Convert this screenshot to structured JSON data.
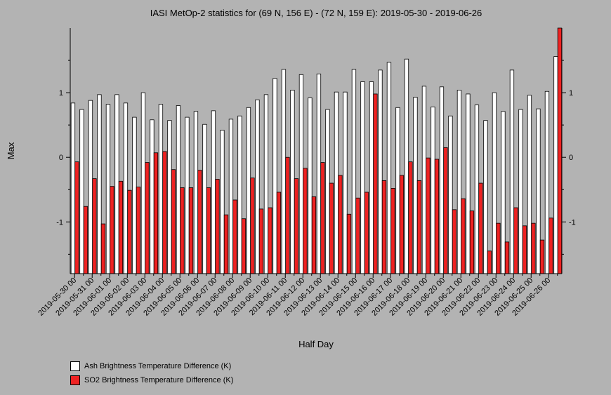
{
  "chart_data": {
    "type": "bar",
    "title": "IASI MetOp-2 statistics for (69 N, 156 E) - (72 N, 159 E): 2019-05-30 - 2019-06-26",
    "xlabel": "Half Day",
    "ylabel": "Max",
    "ylim": [
      -1.8,
      2.0
    ],
    "yticks": [
      -1,
      0,
      1
    ],
    "grid": false,
    "legend_position": "bottom-left",
    "categories": [
      "2019-05-30 00",
      "2019-05-30 12",
      "2019-05-31 00",
      "2019-05-31 12",
      "2019-06-01 00",
      "2019-06-01 12",
      "2019-06-02 00",
      "2019-06-02 12",
      "2019-06-03 00",
      "2019-06-03 12",
      "2019-06-04 00",
      "2019-06-04 12",
      "2019-06-05 00",
      "2019-06-05 12",
      "2019-06-06 00",
      "2019-06-06 12",
      "2019-06-07 00",
      "2019-06-07 12",
      "2019-06-08 00",
      "2019-06-08 12",
      "2019-06-09 00",
      "2019-06-09 12",
      "2019-06-10 00",
      "2019-06-10 12",
      "2019-06-11 00",
      "2019-06-11 12",
      "2019-06-12 00",
      "2019-06-12 12",
      "2019-06-13 00",
      "2019-06-13 12",
      "2019-06-14 00",
      "2019-06-14 12",
      "2019-06-15 00",
      "2019-06-15 12",
      "2019-06-16 00",
      "2019-06-16 12",
      "2019-06-17 00",
      "2019-06-17 12",
      "2019-06-18 00",
      "2019-06-18 12",
      "2019-06-19 00",
      "2019-06-19 12",
      "2019-06-20 00",
      "2019-06-20 12",
      "2019-06-21 00",
      "2019-06-21 12",
      "2019-06-22 00",
      "2019-06-22 12",
      "2019-06-23 00",
      "2019-06-23 12",
      "2019-06-24 00",
      "2019-06-24 12",
      "2019-06-25 00",
      "2019-06-25 12",
      "2019-06-26 00",
      "2019-06-26 12"
    ],
    "xtick_labels": [
      "2019-05-30 00",
      "2019-05-31 00",
      "2019-06-01 00",
      "2019-06-02 00",
      "2019-06-03 00",
      "2019-06-04 00",
      "2019-06-05 00",
      "2019-06-06 00",
      "2019-06-07 00",
      "2019-06-08 00",
      "2019-06-09 00",
      "2019-06-10 00",
      "2019-06-11 00",
      "2019-06-12 00",
      "2019-06-13 00",
      "2019-06-14 00",
      "2019-06-15 00",
      "2019-06-16 00",
      "2019-06-17 00",
      "2019-06-18 00",
      "2019-06-19 00",
      "2019-06-20 00",
      "2019-06-21 00",
      "2019-06-22 00",
      "2019-06-23 00",
      "2019-06-24 00",
      "2019-06-25 00",
      "2019-06-26 00"
    ],
    "series": [
      {
        "name": "Ash Brightness Temperature Difference (K)",
        "color": "#ffffff",
        "values": [
          0.84,
          0.74,
          0.88,
          0.97,
          0.82,
          0.97,
          0.84,
          0.62,
          1.0,
          0.58,
          0.82,
          0.57,
          0.8,
          0.62,
          0.71,
          0.51,
          0.72,
          0.42,
          0.59,
          0.64,
          0.77,
          0.89,
          0.97,
          1.22,
          1.36,
          1.04,
          1.28,
          0.92,
          1.29,
          0.74,
          1.01,
          1.01,
          1.36,
          1.17,
          1.17,
          1.35,
          1.47,
          0.77,
          1.52,
          0.93,
          1.1,
          0.78,
          1.09,
          0.64,
          1.04,
          0.98,
          0.81,
          0.57,
          1.0,
          0.71,
          1.35,
          0.74,
          0.96,
          0.75,
          1.02,
          1.56
        ]
      },
      {
        "name": "SO2 Brightness Temperature Difference (K)",
        "color": "#ee2222",
        "values": [
          -0.07,
          -0.76,
          -0.33,
          -1.03,
          -0.45,
          -0.37,
          -0.51,
          -0.46,
          -0.08,
          0.07,
          0.09,
          -0.19,
          -0.47,
          -0.47,
          -0.2,
          -0.47,
          -0.34,
          -0.89,
          -0.66,
          -0.95,
          -0.32,
          -0.8,
          -0.78,
          -0.54,
          0.0,
          -0.33,
          -0.17,
          -0.61,
          -0.08,
          -0.4,
          -0.28,
          -0.88,
          -0.63,
          -0.54,
          0.98,
          -0.36,
          -0.48,
          -0.28,
          -0.07,
          -0.36,
          -0.01,
          -0.03,
          0.15,
          -0.81,
          -0.64,
          -0.83,
          -0.4,
          -1.45,
          -1.02,
          -1.31,
          -0.78,
          -1.06,
          -1.02,
          -1.28,
          -0.94,
          2.0
        ]
      }
    ]
  }
}
